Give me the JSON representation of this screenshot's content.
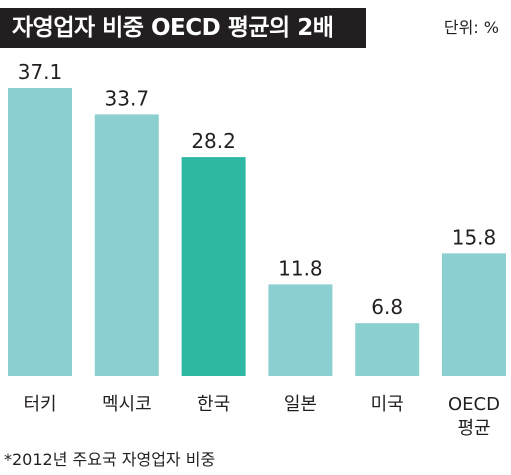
{
  "header": {
    "title": "자영업자 비중 OECD 평균의 2배",
    "unit": "단위: %"
  },
  "footnote": "*2012년 주요국 자영업자 비중",
  "colors": {
    "bar": "#8ccfd1",
    "highlight_bar": "#2fb9a5",
    "title_bg": "#231f20"
  },
  "chart_data": {
    "type": "bar",
    "categories": [
      "터키",
      "멕시코",
      "한국",
      "일본",
      "미국",
      "OECD 평균"
    ],
    "category_lines": [
      [
        "터키"
      ],
      [
        "멕시코"
      ],
      [
        "한국"
      ],
      [
        "일본"
      ],
      [
        "미국"
      ],
      [
        "OECD",
        "평균"
      ]
    ],
    "values": [
      37.1,
      33.7,
      28.2,
      11.8,
      6.8,
      15.8
    ],
    "value_labels": [
      "37.1",
      "33.7",
      "28.2",
      "11.8",
      "6.8",
      "15.8"
    ],
    "highlight_index": 2,
    "ylim": [
      0,
      37.1
    ],
    "grid": false,
    "title": "자영업자 비중 OECD 평균의 2배",
    "xlabel": "",
    "ylabel": ""
  }
}
